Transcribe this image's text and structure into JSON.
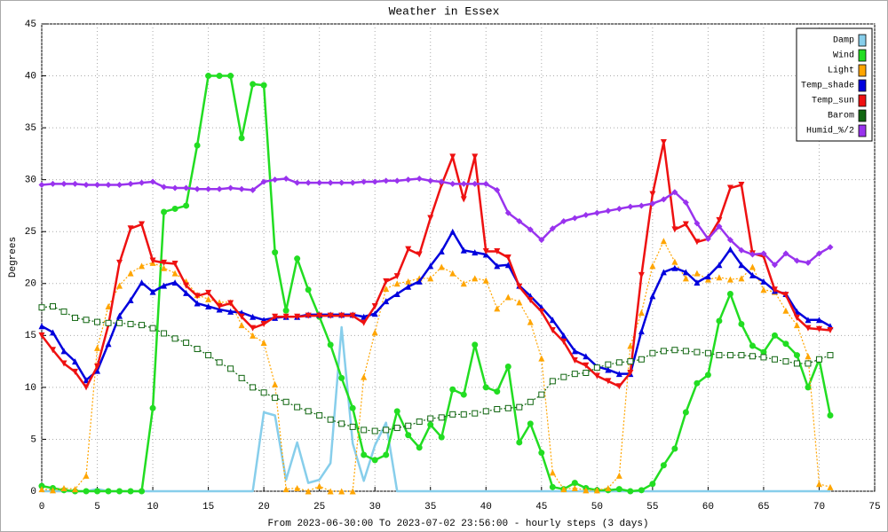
{
  "chart_data": {
    "type": "line",
    "title": "Weather in Essex",
    "ylabel": "Degrees",
    "xlabel": "From 2023-06-30:00 To 2023-07-02 23:56:00 - hourly steps (3 days)",
    "x": [
      0,
      1,
      2,
      3,
      4,
      5,
      6,
      7,
      8,
      9,
      10,
      11,
      12,
      13,
      14,
      15,
      16,
      17,
      18,
      19,
      20,
      21,
      22,
      23,
      24,
      25,
      26,
      27,
      28,
      29,
      30,
      31,
      32,
      33,
      34,
      35,
      36,
      37,
      38,
      39,
      40,
      41,
      42,
      43,
      44,
      45,
      46,
      47,
      48,
      49,
      50,
      51,
      52,
      53,
      54,
      55,
      56,
      57,
      58,
      59,
      60,
      61,
      62,
      63,
      64,
      65,
      66,
      67,
      68,
      69,
      70,
      71
    ],
    "xlim": [
      0,
      75
    ],
    "xticks": [
      0,
      5,
      10,
      15,
      20,
      25,
      30,
      35,
      40,
      45,
      50,
      55,
      60,
      65,
      70,
      75
    ],
    "ylim": [
      0,
      45
    ],
    "yticks": [
      0,
      5,
      10,
      15,
      20,
      25,
      30,
      35,
      40,
      45
    ],
    "grid": true,
    "legend": "top-right",
    "series": [
      {
        "name": "Damp",
        "color": "#87ceeb",
        "marker": "none",
        "dash": "solid",
        "values": [
          0,
          0,
          0,
          0,
          0,
          0.2,
          0,
          0,
          0,
          0,
          0,
          0,
          0,
          0,
          0,
          0,
          0,
          0,
          0,
          0,
          7.6,
          7.3,
          1.1,
          4.7,
          0.8,
          1.1,
          2.7,
          15.8,
          4.6,
          1,
          4.4,
          6.6,
          0,
          0,
          0,
          0,
          0,
          0,
          0,
          0,
          0,
          0,
          0,
          0,
          0,
          0,
          0,
          0,
          0,
          0,
          0,
          0,
          0,
          0,
          0,
          0,
          0,
          0,
          0,
          0,
          0,
          0,
          0,
          0,
          0,
          0,
          0,
          0,
          0,
          0,
          0,
          0
        ]
      },
      {
        "name": "Wind",
        "color": "#22dd22",
        "marker": "circle",
        "dash": "solid",
        "values": [
          0.5,
          0.3,
          0.1,
          0,
          0,
          0,
          0,
          0,
          0,
          0,
          8,
          26.9,
          27.2,
          27.5,
          33.3,
          40,
          40,
          40,
          34,
          39.2,
          39.1,
          23,
          17.4,
          22.4,
          19.4,
          16.8,
          14.1,
          10.9,
          8,
          3.5,
          3,
          3.5,
          7.7,
          5.4,
          4.2,
          6.4,
          5.2,
          9.8,
          9.3,
          14.1,
          10,
          9.6,
          12,
          4.7,
          6.5,
          3.7,
          0.4,
          0.2,
          0.8,
          0.3,
          0.1,
          0.1,
          0.2,
          0,
          0.1,
          0.7,
          2.5,
          4.1,
          7.6,
          10.4,
          11.2,
          16.4,
          19,
          16.1,
          14,
          13.4,
          15,
          14.2,
          13.1,
          10,
          12.7,
          7.3
        ]
      },
      {
        "name": "Light",
        "color": "#ffa500",
        "marker": "triangle",
        "dash": "dotted",
        "values": [
          0.2,
          0.1,
          0.3,
          0.2,
          1.5,
          13.8,
          17.8,
          19.8,
          21,
          21.7,
          22,
          21.5,
          21,
          20.2,
          18.9,
          18.5,
          18.2,
          18.2,
          16,
          15,
          14.3,
          10.3,
          0.2,
          0.3,
          0,
          0.5,
          0,
          0,
          0,
          11,
          15.3,
          19.5,
          20,
          20.2,
          20.5,
          20.5,
          21.6,
          21,
          20,
          20.5,
          20.3,
          17.6,
          18.7,
          18.2,
          16.3,
          12.8,
          1.8,
          0.2,
          0.3,
          0.1,
          0.1,
          0.3,
          1.5,
          14,
          17.2,
          21.7,
          24.1,
          22.1,
          20.5,
          21,
          20.4,
          20.6,
          20.4,
          20.5,
          21.6,
          19.4,
          19.2,
          17.4,
          16,
          13,
          0.7,
          0.4
        ]
      },
      {
        "name": "Temp_shade",
        "color": "#0000dd",
        "marker": "triangle",
        "dash": "solid",
        "values": [
          15.9,
          15.3,
          13.5,
          12.5,
          10.7,
          11.6,
          14.2,
          16.9,
          18.4,
          20.1,
          19.2,
          19.8,
          20.1,
          19.1,
          18.1,
          17.8,
          17.5,
          17.3,
          17.2,
          16.8,
          16.5,
          16.7,
          16.8,
          16.8,
          17,
          17,
          17,
          17,
          17,
          16.8,
          17.1,
          18.3,
          19,
          19.7,
          20.2,
          21.7,
          23.1,
          25,
          23.2,
          23,
          22.8,
          21.7,
          21.8,
          19.8,
          18.8,
          17.7,
          16.5,
          15,
          13.5,
          13,
          12,
          11.7,
          11.3,
          11.3,
          15.4,
          18.8,
          21.1,
          21.5,
          21.1,
          20.1,
          20.7,
          21.8,
          23.3,
          21.8,
          20.8,
          20.2,
          19.3,
          19,
          17.3,
          16.5,
          16.5,
          15.9
        ]
      },
      {
        "name": "Temp_sun",
        "color": "#ee1111",
        "marker": "triangle-down",
        "dash": "solid",
        "values": [
          15,
          13.6,
          12.3,
          11.5,
          10,
          12,
          16,
          22,
          25.3,
          25.7,
          22.2,
          22,
          21.9,
          19.8,
          18.8,
          19.1,
          17.8,
          18.1,
          16.8,
          15.7,
          16.1,
          16.8,
          16.8,
          16.8,
          16.9,
          16.9,
          16.9,
          16.9,
          16.9,
          16.2,
          17.8,
          20.2,
          20.7,
          23.3,
          22.8,
          26.3,
          29.5,
          32.2,
          28.1,
          32.2,
          23.1,
          23.1,
          22.5,
          19.7,
          18.4,
          17.3,
          15.5,
          14.4,
          12.6,
          12.1,
          11.1,
          10.6,
          10.1,
          11.4,
          20.8,
          28.6,
          33.6,
          25.2,
          25.7,
          24,
          24.3,
          26.1,
          29.2,
          29.5,
          22.9,
          22.6,
          19.4,
          18.9,
          16.7,
          15.7,
          15.6,
          15.5
        ]
      },
      {
        "name": "Barom",
        "color": "#116611",
        "marker": "square",
        "dash": "dotted",
        "values": [
          17.7,
          17.8,
          17.3,
          16.7,
          16.5,
          16.3,
          16.2,
          16.2,
          16.1,
          16,
          15.7,
          15.2,
          14.7,
          14.3,
          13.7,
          13.1,
          12.4,
          11.8,
          10.9,
          10,
          9.5,
          9,
          8.6,
          8.1,
          7.7,
          7.3,
          6.9,
          6.5,
          6.2,
          5.9,
          5.8,
          5.9,
          6.1,
          6.3,
          6.7,
          7,
          7.1,
          7.4,
          7.4,
          7.5,
          7.7,
          7.9,
          8,
          8.1,
          8.6,
          9.3,
          10.6,
          11,
          11.3,
          11.4,
          11.9,
          12.2,
          12.4,
          12.5,
          12.7,
          13.3,
          13.5,
          13.6,
          13.5,
          13.4,
          13.3,
          13.1,
          13.1,
          13.1,
          13,
          12.9,
          12.7,
          12.5,
          12.3,
          12.3,
          12.7,
          13.1
        ]
      },
      {
        "name": "Humid_%/2",
        "color": "#9933ee",
        "marker": "diamond",
        "dash": "solid",
        "values": [
          29.5,
          29.6,
          29.6,
          29.6,
          29.5,
          29.5,
          29.5,
          29.5,
          29.6,
          29.7,
          29.8,
          29.3,
          29.2,
          29.2,
          29.1,
          29.1,
          29.1,
          29.2,
          29.1,
          29.0,
          29.8,
          30,
          30.1,
          29.7,
          29.7,
          29.7,
          29.7,
          29.7,
          29.7,
          29.8,
          29.8,
          29.9,
          29.9,
          30,
          30.1,
          29.9,
          29.8,
          29.6,
          29.6,
          29.6,
          29.6,
          29,
          26.8,
          26,
          25.2,
          24.2,
          25.3,
          26,
          26.3,
          26.6,
          26.8,
          27,
          27.2,
          27.4,
          27.5,
          27.7,
          28.1,
          28.8,
          27.8,
          25.8,
          24.3,
          25.5,
          24.2,
          23.2,
          22.8,
          22.9,
          21.8,
          22.9,
          22.2,
          22,
          22.9,
          23.5
        ]
      }
    ]
  }
}
